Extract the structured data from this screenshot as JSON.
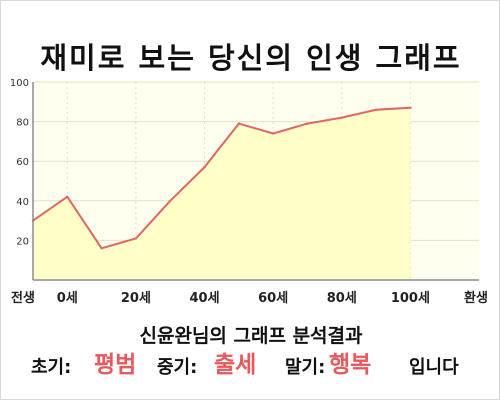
{
  "header": {
    "title": "재미로 보는 당신의 인생 그래프"
  },
  "chart_data": {
    "type": "area",
    "x": [
      0,
      10,
      20,
      30,
      40,
      50,
      60,
      70,
      80,
      90,
      100,
      110
    ],
    "y": [
      30,
      42,
      16,
      21,
      40,
      57,
      79,
      74,
      79,
      82,
      86,
      87
    ],
    "x_ticks": [
      {
        "x": 0,
        "label": "전생"
      },
      {
        "x": 10,
        "label": "0세"
      },
      {
        "x": 30,
        "label": "20세"
      },
      {
        "x": 50,
        "label": "40세"
      },
      {
        "x": 70,
        "label": "60세"
      },
      {
        "x": 90,
        "label": "80세"
      },
      {
        "x": 110,
        "label": "100세"
      },
      {
        "x": 130,
        "label": "환생"
      }
    ],
    "y_ticks": [
      20,
      40,
      60,
      80,
      100
    ],
    "xlim": [
      0,
      130
    ],
    "ylim": [
      0,
      100
    ],
    "grid": true,
    "colors": {
      "line": "#e06666",
      "fill": "#ffffc8",
      "plot_bg": "#fffff0",
      "grid": "#e6e0c0",
      "axis": "#8c8c8c"
    }
  },
  "result": {
    "heading": "신윤완님의 그래프 분석결과",
    "early_label": "초기:",
    "early_value": "평범",
    "mid_label": "중기:",
    "mid_value": "출세",
    "late_label": "말기:",
    "late_value": "행복",
    "ending": "입니다"
  }
}
